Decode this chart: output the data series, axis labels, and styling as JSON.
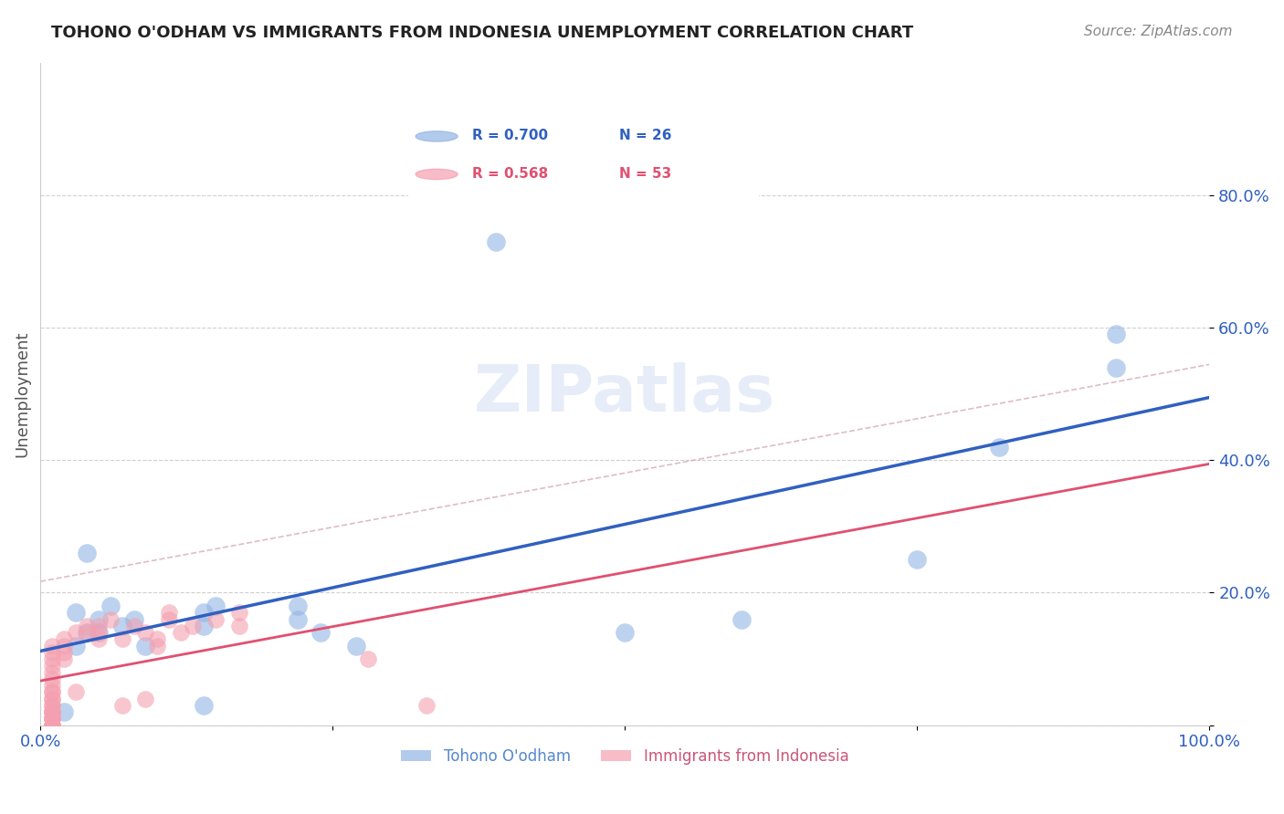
{
  "title": "TOHONO O'ODHAM VS IMMIGRANTS FROM INDONESIA UNEMPLOYMENT CORRELATION CHART",
  "source": "Source: ZipAtlas.com",
  "xlabel": "",
  "ylabel": "Unemployment",
  "xlim": [
    0,
    1.0
  ],
  "ylim": [
    0,
    1.0
  ],
  "xticks": [
    0.0,
    0.25,
    0.5,
    0.75,
    1.0
  ],
  "xtick_labels": [
    "0.0%",
    "",
    "",
    "",
    "100.0%"
  ],
  "ytick_labels": [
    "",
    "20.0%",
    "40.0%",
    "60.0%",
    "80.0%"
  ],
  "yticks": [
    0.0,
    0.2,
    0.4,
    0.6,
    0.8
  ],
  "blue_color": "#92b4e3",
  "pink_color": "#f4a0b0",
  "blue_line_color": "#3060c0",
  "pink_line_color": "#e05070",
  "pink_dashed_color": "#d0a0b0",
  "legend_blue_R": "0.700",
  "legend_blue_N": "26",
  "legend_pink_R": "0.568",
  "legend_pink_N": "53",
  "legend_label_blue": "Tohono O'odham",
  "legend_label_pink": "Immigrants from Indonesia",
  "watermark": "ZIPatlas",
  "blue_points_x": [
    0.39,
    0.04,
    0.06,
    0.03,
    0.05,
    0.05,
    0.04,
    0.03,
    0.07,
    0.08,
    0.09,
    0.14,
    0.14,
    0.15,
    0.22,
    0.22,
    0.24,
    0.27,
    0.6,
    0.75,
    0.82,
    0.92,
    0.92,
    0.02,
    0.14,
    0.5
  ],
  "blue_points_y": [
    0.73,
    0.26,
    0.18,
    0.17,
    0.16,
    0.14,
    0.14,
    0.12,
    0.15,
    0.16,
    0.12,
    0.17,
    0.15,
    0.18,
    0.16,
    0.18,
    0.14,
    0.12,
    0.16,
    0.25,
    0.42,
    0.54,
    0.59,
    0.02,
    0.03,
    0.14
  ],
  "pink_points_x": [
    0.01,
    0.01,
    0.01,
    0.01,
    0.01,
    0.01,
    0.01,
    0.01,
    0.01,
    0.01,
    0.01,
    0.01,
    0.01,
    0.01,
    0.01,
    0.01,
    0.01,
    0.01,
    0.01,
    0.01,
    0.01,
    0.01,
    0.01,
    0.01,
    0.01,
    0.02,
    0.02,
    0.02,
    0.02,
    0.03,
    0.03,
    0.04,
    0.04,
    0.05,
    0.05,
    0.05,
    0.06,
    0.07,
    0.07,
    0.08,
    0.09,
    0.09,
    0.1,
    0.1,
    0.11,
    0.11,
    0.12,
    0.13,
    0.15,
    0.17,
    0.17,
    0.28,
    0.33
  ],
  "pink_points_y": [
    0.02,
    0.03,
    0.04,
    0.05,
    0.06,
    0.07,
    0.08,
    0.09,
    0.1,
    0.11,
    0.12,
    0.02,
    0.01,
    0.0,
    0.01,
    0.02,
    0.03,
    0.04,
    0.05,
    0.0,
    0.01,
    0.02,
    0.0,
    0.01,
    0.0,
    0.1,
    0.11,
    0.12,
    0.13,
    0.14,
    0.05,
    0.14,
    0.15,
    0.13,
    0.14,
    0.15,
    0.16,
    0.13,
    0.03,
    0.15,
    0.14,
    0.04,
    0.13,
    0.12,
    0.16,
    0.17,
    0.14,
    0.15,
    0.16,
    0.15,
    0.17,
    0.1,
    0.03
  ]
}
